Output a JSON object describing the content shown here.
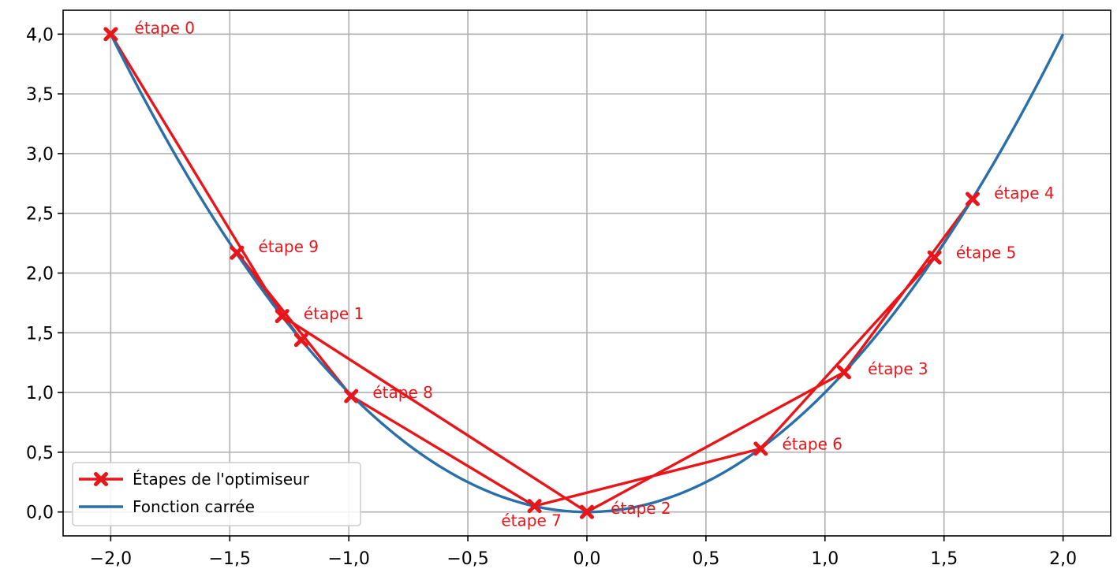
{
  "chart_data": {
    "type": "line",
    "xlim": [
      -2.2,
      2.2
    ],
    "ylim": [
      -0.2,
      4.2
    ],
    "grid": true,
    "legend_position": "lower-left",
    "x_ticks": [
      -2.0,
      -1.5,
      -1.0,
      -0.5,
      0.0,
      0.5,
      1.0,
      1.5,
      2.0
    ],
    "x_tick_labels": [
      "−2,0",
      "−1,5",
      "−1,0",
      "−0,5",
      "0,0",
      "0,5",
      "1,0",
      "1,5",
      "2,0"
    ],
    "y_ticks": [
      0.0,
      0.5,
      1.0,
      1.5,
      2.0,
      2.5,
      3.0,
      3.5,
      4.0
    ],
    "y_tick_labels": [
      "0,0",
      "0,5",
      "1,0",
      "1,5",
      "2,0",
      "2,5",
      "3,0",
      "3,5",
      "4,0"
    ],
    "series": [
      {
        "name": "Fonction carrée",
        "kind": "curve",
        "function": "x^2",
        "x_range": [
          -2.0,
          2.0
        ],
        "color": "#2a6fa8"
      },
      {
        "name": "Étapes de l'optimiseur",
        "kind": "path",
        "color": "#e8161b",
        "marker": "X",
        "points": [
          {
            "x": -2.0,
            "y": 4.0
          },
          {
            "x": -1.28,
            "y": 1.64
          },
          {
            "x": 0.0,
            "y": 0.0
          },
          {
            "x": 1.08,
            "y": 1.17
          },
          {
            "x": 1.62,
            "y": 2.62
          },
          {
            "x": 1.46,
            "y": 2.13
          },
          {
            "x": 0.73,
            "y": 0.53
          },
          {
            "x": -0.22,
            "y": 0.05
          },
          {
            "x": -0.99,
            "y": 0.97
          },
          {
            "x": -1.47,
            "y": 2.17
          },
          {
            "x": -1.2,
            "y": 1.44
          }
        ],
        "labels": [
          {
            "text": "étape 0",
            "x": -1.9,
            "y": 4.05,
            "point": 0
          },
          {
            "text": "étape 1",
            "x": -1.19,
            "y": 1.66,
            "point": 1
          },
          {
            "text": "étape 2",
            "x": 0.1,
            "y": 0.03,
            "point": 2
          },
          {
            "text": "étape 3",
            "x": 1.18,
            "y": 1.2,
            "point": 3
          },
          {
            "text": "étape 4",
            "x": 1.71,
            "y": 2.67,
            "point": 4
          },
          {
            "text": "étape 5",
            "x": 1.55,
            "y": 2.17,
            "point": 5
          },
          {
            "text": "étape 6",
            "x": 0.82,
            "y": 0.57,
            "point": 6
          },
          {
            "text": "étape 7",
            "x": -0.36,
            "y": -0.07,
            "point": 7
          },
          {
            "text": "étape 8",
            "x": -0.9,
            "y": 1.0,
            "point": 8
          },
          {
            "text": "étape 9",
            "x": -1.38,
            "y": 2.22,
            "point": 9
          }
        ]
      }
    ]
  }
}
